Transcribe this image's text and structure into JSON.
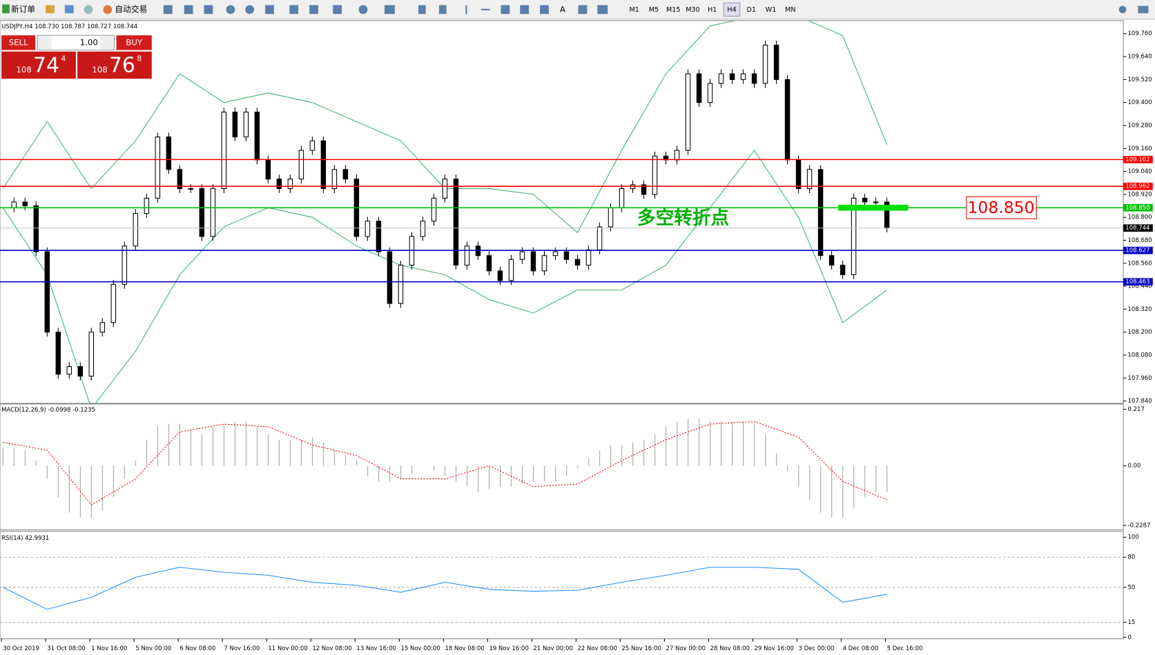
{
  "toolbar": {
    "new_order": "新订单",
    "auto_trading": "自动交易",
    "text_tool": "A",
    "timeframes": [
      "M1",
      "M5",
      "M15",
      "M30",
      "H1",
      "H4",
      "D1",
      "W1",
      "MN"
    ]
  },
  "trade_panel": {
    "sell": "SELL",
    "buy": "BUY",
    "lot": "1.00",
    "sell_big": "108",
    "sell_main": "74",
    "sell_pip": "4",
    "buy_big": "108",
    "buy_main": "76",
    "buy_pip": "8"
  },
  "chart_data": {
    "type": "candlestick",
    "symbol_header": "USDJPY,H4  108.730 108.787 108.727 108.744",
    "ylim": [
      107.828,
      109.828
    ],
    "yticks": [
      {
        "value": 109.76,
        "label": "109.760"
      },
      {
        "value": 109.64,
        "label": "109.640"
      },
      {
        "value": 109.52,
        "label": "109.520"
      },
      {
        "value": 109.4,
        "label": "109.400"
      },
      {
        "value": 109.28,
        "label": "109.280"
      },
      {
        "value": 109.16,
        "label": "109.160"
      },
      {
        "value": 109.04,
        "label": "109.040"
      },
      {
        "value": 108.92,
        "label": "108.920"
      },
      {
        "value": 108.8,
        "label": "108.800"
      },
      {
        "value": 108.68,
        "label": "108.680"
      },
      {
        "value": 108.56,
        "label": "108.560"
      },
      {
        "value": 108.44,
        "label": "108.440"
      },
      {
        "value": 108.32,
        "label": "108.320"
      },
      {
        "value": 108.2,
        "label": "108.200"
      },
      {
        "value": 108.08,
        "label": "108.080"
      },
      {
        "value": 107.96,
        "label": "107.960"
      },
      {
        "value": 107.84,
        "label": "107.840"
      }
    ],
    "closes": [
      108.85,
      108.88,
      108.86,
      108.62,
      108.2,
      107.98,
      108.02,
      107.97,
      108.2,
      108.25,
      108.45,
      108.65,
      108.82,
      108.9,
      109.22,
      109.05,
      108.95,
      108.95,
      108.7,
      108.95,
      109.35,
      109.22,
      109.35,
      109.1,
      109.0,
      108.95,
      109.0,
      109.15,
      109.2,
      108.95,
      109.05,
      109.0,
      108.7,
      108.78,
      108.62,
      108.35,
      108.55,
      108.7,
      108.78,
      108.9,
      109.0,
      108.55,
      108.65,
      108.6,
      108.52,
      108.47,
      108.58,
      108.62,
      108.52,
      108.6,
      108.62,
      108.58,
      108.55,
      108.63,
      108.75,
      108.85,
      108.95,
      108.97,
      108.92,
      109.12,
      109.1,
      109.15,
      109.55,
      109.4,
      109.5,
      109.55,
      109.52,
      109.55,
      109.5,
      109.7,
      109.52,
      109.1,
      108.95,
      109.05,
      108.6,
      108.55,
      108.5,
      108.9,
      108.88,
      108.88,
      108.744
    ],
    "band_upper": [
      108.95,
      109.3,
      108.95,
      109.2,
      109.55,
      109.4,
      109.45,
      109.4,
      109.3,
      109.2,
      108.95,
      108.95,
      108.92,
      108.72,
      109.15,
      109.55,
      109.8,
      109.85,
      109.85,
      109.75,
      109.18
    ],
    "band_lower": [
      108.85,
      108.5,
      107.8,
      108.1,
      108.5,
      108.75,
      108.85,
      108.8,
      108.65,
      108.55,
      108.5,
      108.37,
      108.3,
      108.42,
      108.42,
      108.55,
      108.85,
      109.15,
      108.8,
      108.25,
      108.42
    ],
    "levels": [
      {
        "value": 109.102,
        "label": "109.102",
        "color": "#ff0000"
      },
      {
        "value": 108.962,
        "label": "108.962",
        "color": "#ff0000"
      },
      {
        "value": 108.85,
        "label": "108.850",
        "color": "#00c000"
      },
      {
        "value": 108.744,
        "label": "108.744",
        "color": "#000000"
      },
      {
        "value": 108.627,
        "label": "108.627",
        "color": "#0000c0"
      },
      {
        "value": 108.463,
        "label": "108.463",
        "color": "#0000c0"
      }
    ],
    "annotation": "多空转折点",
    "time_labels": [
      "30 Oct 2019",
      "31 Oct 08:00",
      "1 Nov 16:00",
      "5 Nov 00:00",
      "6 Nov 08:00",
      "7 Nov 16:00",
      "11 Nov 00:00",
      "12 Nov 08:00",
      "13 Nov 16:00",
      "15 Nov 00:00",
      "18 Nov 08:00",
      "19 Nov 16:00",
      "21 Nov 00:00",
      "22 Nov 08:00",
      "25 Nov 16:00",
      "27 Nov 00:00",
      "28 Nov 08:00",
      "29 Nov 16:00",
      "3 Dec 00:00",
      "4 Dec 08:00",
      "5 Dec 16:00"
    ]
  },
  "macd": {
    "label": "MACD(12,26,9) -0.0998 -0.1235",
    "ylim": [
      -0.246,
      0.237
    ],
    "yticks": [
      0.217,
      {
        "value": 0,
        "label": "0.00"
      },
      -0.2287
    ],
    "histogram": [
      0.07,
      0.07,
      0.06,
      0.02,
      -0.05,
      -0.12,
      -0.18,
      -0.2,
      -0.2,
      -0.17,
      -0.12,
      -0.05,
      0.02,
      0.1,
      0.15,
      0.16,
      0.16,
      0.14,
      0.12,
      0.15,
      0.16,
      0.17,
      0.17,
      0.15,
      0.12,
      0.1,
      0.1,
      0.1,
      0.11,
      0.09,
      0.06,
      0.04,
      0.02,
      -0.04,
      -0.06,
      -0.06,
      -0.05,
      -0.03,
      0.0,
      -0.02,
      -0.04,
      -0.06,
      -0.08,
      -0.1,
      -0.09,
      -0.08,
      -0.08,
      -0.07,
      -0.06,
      -0.06,
      -0.06,
      -0.04,
      -0.01,
      0.03,
      0.06,
      0.08,
      0.08,
      0.09,
      0.1,
      0.12,
      0.15,
      0.17,
      0.18,
      0.18,
      0.17,
      0.17,
      0.17,
      0.17,
      0.16,
      0.12,
      0.05,
      -0.02,
      -0.08,
      -0.13,
      -0.18,
      -0.2,
      -0.2,
      -0.16,
      -0.12,
      -0.1,
      -0.1
    ],
    "signal": [
      0.09,
      0.06,
      -0.15,
      -0.05,
      0.13,
      0.16,
      0.15,
      0.08,
      0.04,
      -0.05,
      -0.05,
      0.0,
      -0.08,
      -0.07,
      0.02,
      0.1,
      0.16,
      0.17,
      0.11,
      -0.06,
      -0.13
    ]
  },
  "rsi": {
    "label": "RSI(14) 42.9931",
    "ylim": [
      -1.5,
      105.9
    ],
    "yticks": [
      100,
      80,
      50,
      15,
      0
    ],
    "levels": [
      80,
      50,
      15
    ],
    "values": [
      50,
      28,
      40,
      60,
      70,
      65,
      62,
      55,
      52,
      45,
      55,
      48,
      46,
      47,
      55,
      62,
      70,
      70,
      68,
      35,
      42.9931
    ]
  }
}
